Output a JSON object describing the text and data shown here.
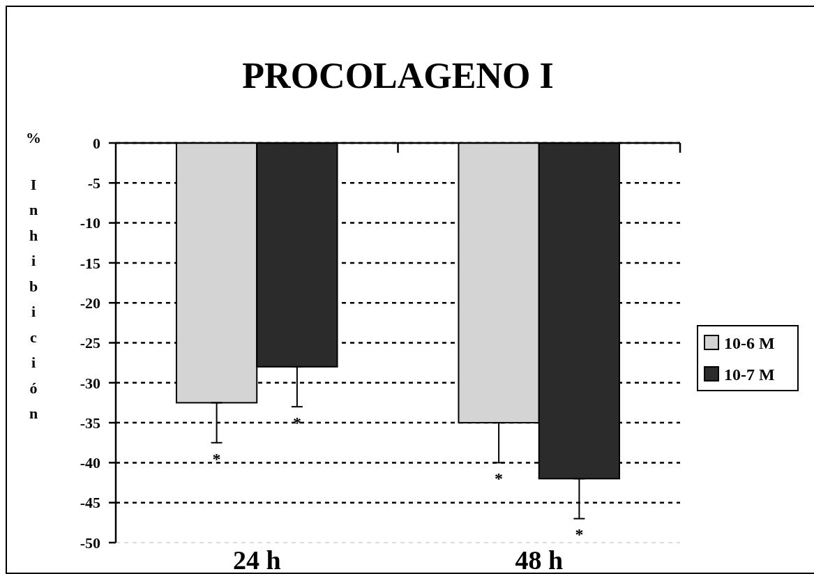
{
  "chart_data": {
    "type": "bar",
    "title": "PROCOLAGENO I",
    "ylabel": "% Inhibición",
    "categories": [
      "24 h",
      "48 h"
    ],
    "series": [
      {
        "name": "10-6 M",
        "color": "#d4d4d4",
        "values": [
          -32.5,
          -35
        ],
        "errors": [
          [
            -37.5,
            -32.5
          ],
          [
            -40,
            -35
          ]
        ]
      },
      {
        "name": "10-7 M",
        "color": "#2b2b2b",
        "values": [
          -28,
          -42
        ],
        "errors": [
          [
            -33,
            -28
          ],
          [
            -47,
            -42
          ]
        ]
      }
    ],
    "ylim": [
      -50,
      0
    ],
    "yticks": [
      0,
      -5,
      -10,
      -15,
      -20,
      -25,
      -30,
      -35,
      -40,
      -45,
      -50
    ],
    "grid": "y",
    "legend": "right",
    "annotations": [
      "*",
      "*",
      "*",
      "*"
    ]
  }
}
